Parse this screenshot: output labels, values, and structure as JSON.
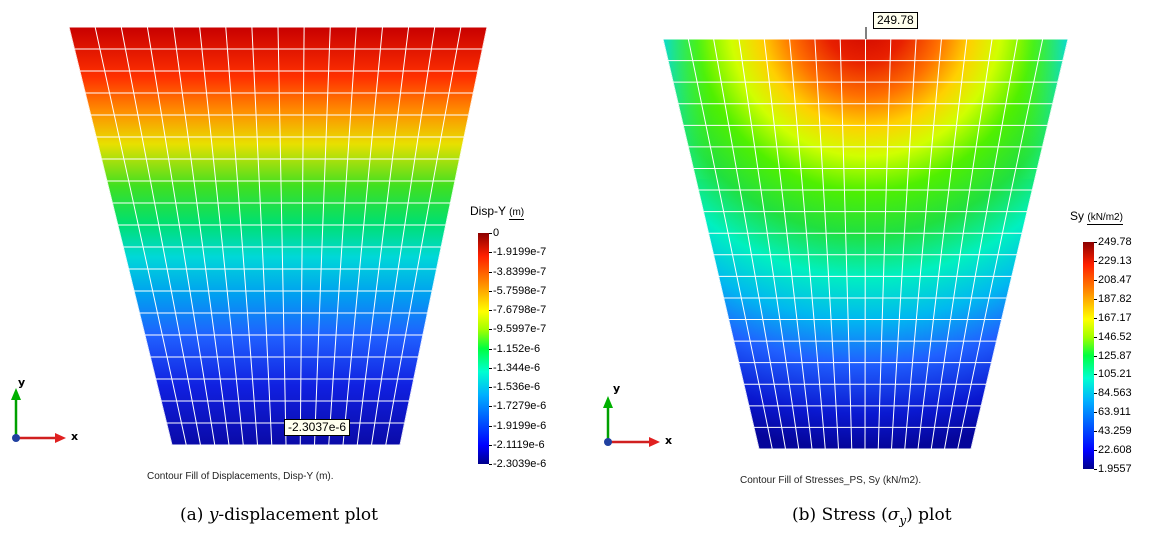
{
  "panels": [
    {
      "id": "a",
      "caption_label": "(a)",
      "caption_math": "y",
      "caption_text": "-displacement plot",
      "plot_caption": "Contour Fill of Displacements, Disp-Y (m).",
      "legend_title": "Disp-Y",
      "legend_unit": "(m)",
      "legend_ticks": [
        "0",
        "-1.9199e-7",
        "-3.8399e-7",
        "-5.7598e-7",
        "-7.6798e-7",
        "-9.5997e-7",
        "-1.152e-6",
        "-1.344e-6",
        "-1.536e-6",
        "-1.7279e-6",
        "-1.9199e-6",
        "-2.1119e-6",
        "-2.3039e-6"
      ],
      "callout": "-2.3037e-6",
      "axis_x": "x",
      "axis_y": "y",
      "colors": {
        "bar_top": "#8b0000",
        "bar_bottom": "#00008b"
      }
    },
    {
      "id": "b",
      "caption_label": "(b)",
      "caption_prefix": "Stress (",
      "caption_math": "σ",
      "caption_sub": "y",
      "caption_suffix": ") plot",
      "plot_caption": "Contour Fill of Stresses_PS, Sy (kN/m2).",
      "legend_title": "Sy",
      "legend_unit": "(kN/m2)",
      "legend_ticks": [
        "249.78",
        "229.13",
        "208.47",
        "187.82",
        "167.17",
        "146.52",
        "125.87",
        "105.21",
        "84.563",
        "63.911",
        "43.259",
        "22.608",
        "1.9557"
      ],
      "callout": "249.78",
      "axis_x": "x",
      "axis_y": "y",
      "colors": {
        "bar_top": "#8b0000",
        "bar_bottom": "#00008b"
      }
    }
  ]
}
